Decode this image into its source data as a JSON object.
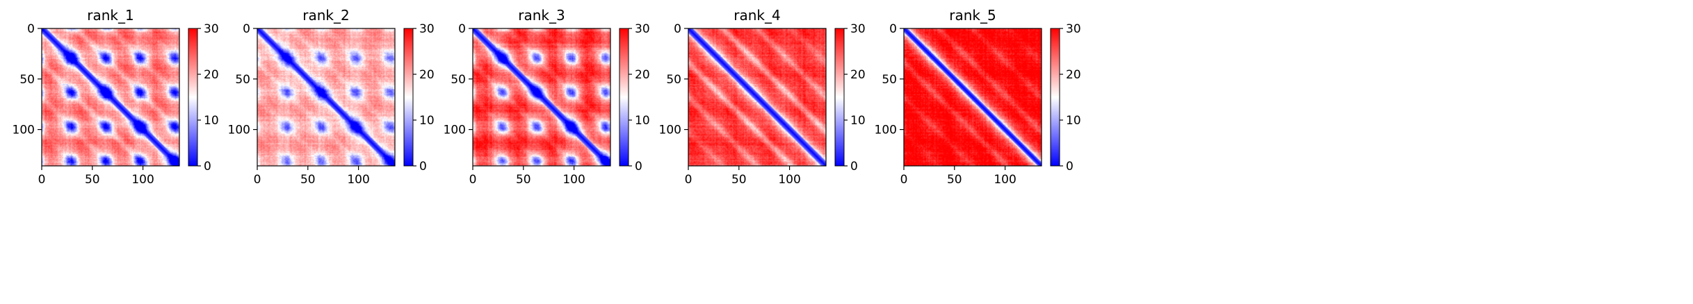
{
  "chart_data": [
    {
      "type": "heatmap",
      "title": "rank_1",
      "xlim": [
        0,
        136
      ],
      "ylim": [
        136,
        0
      ],
      "x_ticks": [
        0,
        50,
        100
      ],
      "y_ticks": [
        0,
        50,
        100
      ],
      "colorbar": {
        "min": 0,
        "max": 30,
        "ticks": [
          0,
          10,
          20,
          30
        ],
        "colormap": [
          "#0000ff",
          "#ffffff",
          "#ff0000"
        ]
      },
      "pattern": {
        "diag_width": 4,
        "blob_spacing": 34,
        "blob_depth": 16,
        "base_far": 22,
        "off_band_strength": 0.7,
        "stripe_strength": 4
      }
    },
    {
      "type": "heatmap",
      "title": "rank_2",
      "xlim": [
        0,
        136
      ],
      "ylim": [
        136,
        0
      ],
      "x_ticks": [
        0,
        50,
        100
      ],
      "y_ticks": [
        0,
        50,
        100
      ],
      "colorbar": {
        "min": 0,
        "max": 30,
        "ticks": [
          0,
          10,
          20,
          30
        ],
        "colormap": [
          "#0000ff",
          "#ffffff",
          "#ff0000"
        ]
      },
      "pattern": {
        "diag_width": 4,
        "blob_spacing": 34,
        "blob_depth": 10,
        "base_far": 20,
        "off_band_strength": 0.4,
        "stripe_strength": 3
      }
    },
    {
      "type": "heatmap",
      "title": "rank_3",
      "xlim": [
        0,
        136
      ],
      "ylim": [
        136,
        0
      ],
      "x_ticks": [
        0,
        50,
        100
      ],
      "y_ticks": [
        0,
        50,
        100
      ],
      "colorbar": {
        "min": 0,
        "max": 30,
        "ticks": [
          0,
          10,
          20,
          30
        ],
        "colormap": [
          "#0000ff",
          "#ffffff",
          "#ff0000"
        ]
      },
      "pattern": {
        "diag_width": 4,
        "blob_spacing": 34,
        "blob_depth": 14,
        "base_far": 25,
        "off_band_strength": 0.5,
        "stripe_strength": 5
      }
    },
    {
      "type": "heatmap",
      "title": "rank_4",
      "xlim": [
        0,
        136
      ],
      "ylim": [
        136,
        0
      ],
      "x_ticks": [
        0,
        50,
        100
      ],
      "y_ticks": [
        0,
        50,
        100
      ],
      "colorbar": {
        "min": 0,
        "max": 30,
        "ticks": [
          0,
          10,
          20,
          30
        ],
        "colormap": [
          "#0000ff",
          "#ffffff",
          "#ff0000"
        ]
      },
      "pattern": {
        "diag_width": 4,
        "blob_spacing": 0,
        "blob_depth": 0,
        "base_far": 27,
        "off_band_strength": 1.0,
        "stripe_strength": 2
      }
    },
    {
      "type": "heatmap",
      "title": "rank_5",
      "xlim": [
        0,
        136
      ],
      "ylim": [
        136,
        0
      ],
      "x_ticks": [
        0,
        50,
        100
      ],
      "y_ticks": [
        0,
        50,
        100
      ],
      "colorbar": {
        "min": 0,
        "max": 30,
        "ticks": [
          0,
          10,
          20,
          30
        ],
        "colormap": [
          "#0000ff",
          "#ffffff",
          "#ff0000"
        ]
      },
      "pattern": {
        "diag_width": 3,
        "blob_spacing": 0,
        "blob_depth": 0,
        "base_far": 30,
        "off_band_strength": 0.6,
        "stripe_strength": 1
      }
    }
  ]
}
